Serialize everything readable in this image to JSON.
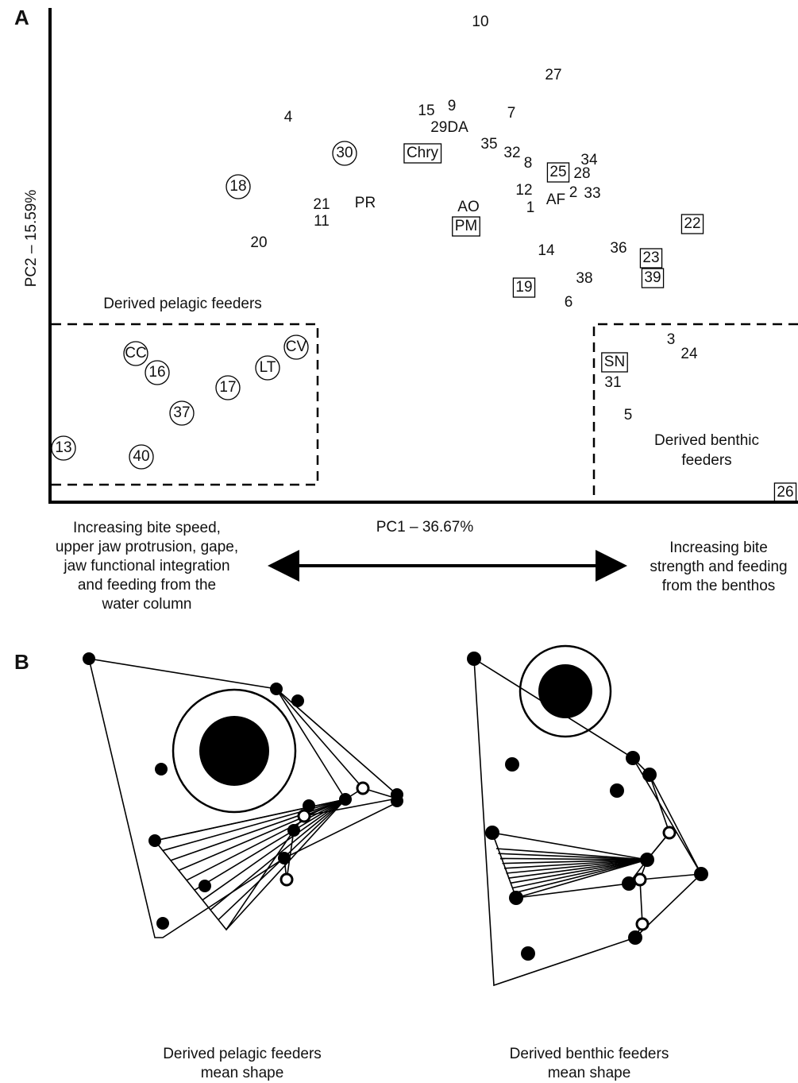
{
  "panel_a": {
    "label": "A",
    "x_axis_label": "PC1 – 36.67%",
    "y_axis_label": "PC2 – 15.59%",
    "pelagic_region_label": "Derived pelagic feeders",
    "benthic_region_label": [
      "Derived benthic",
      "feeders"
    ],
    "left_note": [
      "Increasing bite speed,",
      "upper jaw protrusion, gape,",
      "jaw functional integration",
      "and feeding from the",
      "water column"
    ],
    "right_note": [
      "Increasing bite",
      "strength and feeding",
      "from the benthos"
    ],
    "points": [
      {
        "label": "10",
        "marker": "none"
      },
      {
        "label": "27",
        "marker": "none"
      },
      {
        "label": "4",
        "marker": "none"
      },
      {
        "label": "15",
        "marker": "none"
      },
      {
        "label": "9",
        "marker": "none"
      },
      {
        "label": "29DA",
        "marker": "none"
      },
      {
        "label": "7",
        "marker": "none"
      },
      {
        "label": "35",
        "marker": "none"
      },
      {
        "label": "32",
        "marker": "none"
      },
      {
        "label": "8",
        "marker": "none"
      },
      {
        "label": "Chry",
        "marker": "box"
      },
      {
        "label": "30",
        "marker": "circle"
      },
      {
        "label": "18",
        "marker": "circle"
      },
      {
        "label": "21",
        "marker": "none"
      },
      {
        "label": "11",
        "marker": "none"
      },
      {
        "label": "PR",
        "marker": "none"
      },
      {
        "label": "AO",
        "marker": "none"
      },
      {
        "label": "PM",
        "marker": "box"
      },
      {
        "label": "12",
        "marker": "none"
      },
      {
        "label": "1",
        "marker": "none"
      },
      {
        "label": "25",
        "marker": "box"
      },
      {
        "label": "28",
        "marker": "none"
      },
      {
        "label": "34",
        "marker": "none"
      },
      {
        "label": "AF",
        "marker": "none"
      },
      {
        "label": "2",
        "marker": "none"
      },
      {
        "label": "33",
        "marker": "none"
      },
      {
        "label": "22",
        "marker": "box"
      },
      {
        "label": "20",
        "marker": "none"
      },
      {
        "label": "14",
        "marker": "none"
      },
      {
        "label": "36",
        "marker": "none"
      },
      {
        "label": "23",
        "marker": "box"
      },
      {
        "label": "39",
        "marker": "box"
      },
      {
        "label": "19",
        "marker": "box"
      },
      {
        "label": "38",
        "marker": "none"
      },
      {
        "label": "6",
        "marker": "none"
      },
      {
        "label": "3",
        "marker": "none"
      },
      {
        "label": "24",
        "marker": "none"
      },
      {
        "label": "SN",
        "marker": "box"
      },
      {
        "label": "31",
        "marker": "none"
      },
      {
        "label": "5",
        "marker": "none"
      },
      {
        "label": "26",
        "marker": "box"
      },
      {
        "label": "CC",
        "marker": "circle"
      },
      {
        "label": "16",
        "marker": "circle"
      },
      {
        "label": "CV",
        "marker": "circle"
      },
      {
        "label": "LT",
        "marker": "circle"
      },
      {
        "label": "17",
        "marker": "circle"
      },
      {
        "label": "37",
        "marker": "circle"
      },
      {
        "label": "13",
        "marker": "circle"
      },
      {
        "label": "40",
        "marker": "circle"
      }
    ]
  },
  "panel_b": {
    "label": "B",
    "left_caption": [
      "Derived pelagic feeders",
      "mean shape"
    ],
    "right_caption": [
      "Derived benthic feeders",
      "mean shape"
    ]
  }
}
